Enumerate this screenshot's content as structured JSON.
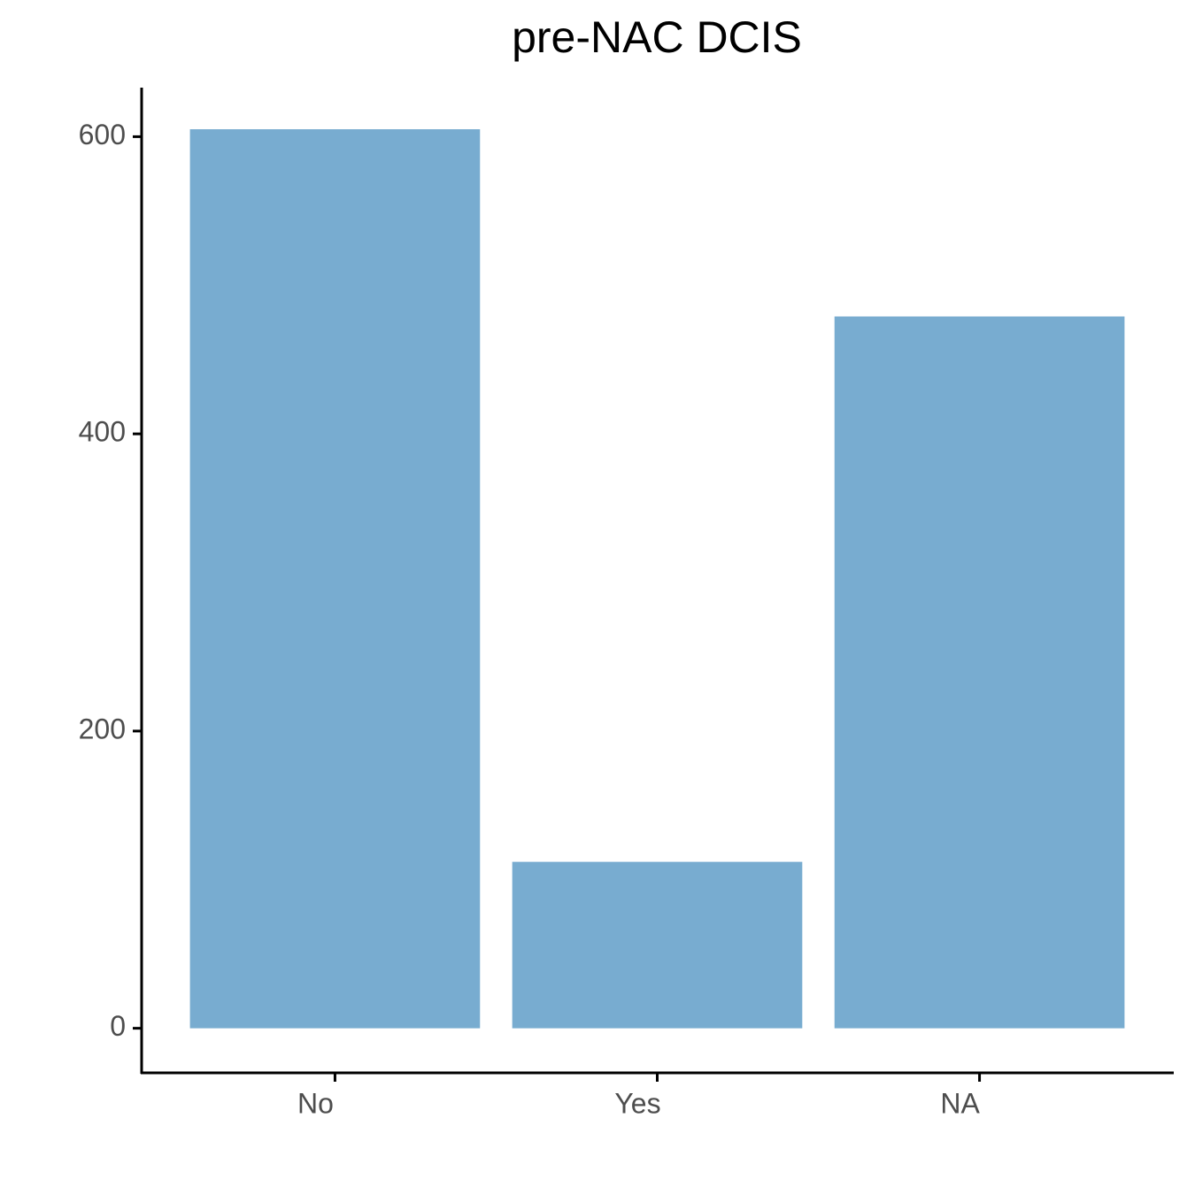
{
  "chart_data": {
    "type": "bar",
    "title": "pre-NAC DCIS",
    "categories": [
      "No",
      "Yes",
      "NA"
    ],
    "values": [
      605,
      112,
      479
    ],
    "color": "#78acd0",
    "ylim": [
      -30,
      633
    ],
    "yticks": [
      0,
      200,
      400,
      600
    ],
    "grid": false
  }
}
